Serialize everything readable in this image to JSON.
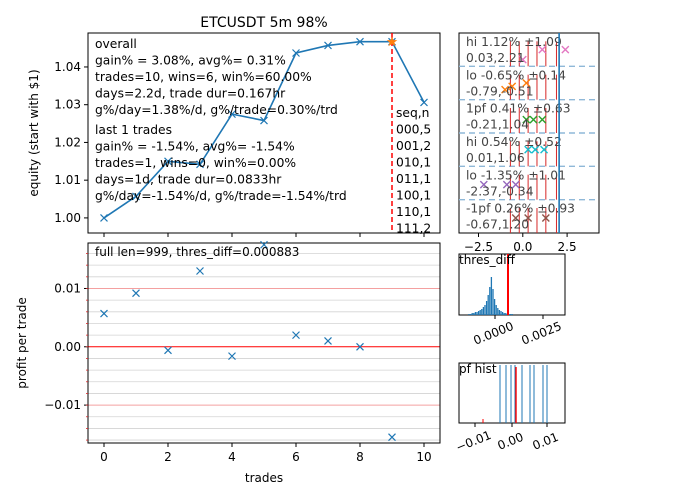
{
  "colors": {
    "series": "#1f77b4",
    "marker_line": "#ff0000",
    "zero_line": "#ff0000",
    "grid_minor": "#d3d3d3",
    "sub_pink": "#e377c2",
    "sub_orange": "#ff7f0e",
    "sub_green": "#2ca02c",
    "sub_olive": "#bcbd22",
    "sub_cyan": "#17becf",
    "sub_purple": "#9467bd",
    "sub_brown": "#8c564b",
    "sub_red": "#d62728"
  },
  "chart_data": [
    {
      "type": "line",
      "title": "ETCUSDT 5m 98%",
      "xlabel": "",
      "ylabel": "equity (start with $1)",
      "x": [
        0,
        1,
        2,
        3,
        4,
        5,
        6,
        7,
        8,
        9,
        10
      ],
      "y": [
        1.0,
        1.0057,
        1.015,
        1.0142,
        1.0275,
        1.0258,
        1.0437,
        1.0457,
        1.0467,
        1.0467,
        1.0306
      ],
      "xlim": [
        -0.5,
        10.5
      ],
      "ylim": [
        0.996,
        1.049
      ],
      "yticks": [
        "1.00",
        "1.01",
        "1.02",
        "1.03",
        "1.04"
      ],
      "marker_x": 9,
      "annotation_overall": [
        "overall",
        "gain% = 3.08%, avg%= 0.31%",
        "trades=10, wins=6, win%=60.00%",
        "days=2.2d, trade dur=0.167hr",
        "g%/day=1.38%/d, g%/trade=0.30%/trd"
      ],
      "annotation_last": [
        "last 1 trades",
        "gain% = -1.54%, avg%= -1.54%",
        "trades=1, wins=0, win%=0.00%",
        "days=1d, trade dur=0.0833hr",
        "g%/day=-1.54%/d, g%/trade=-1.54%/trd"
      ],
      "seq_table": [
        "seq,n",
        "000,5",
        "001,2",
        "010,1",
        "011,1",
        "100,1",
        "110,1",
        "111,2"
      ]
    },
    {
      "type": "scatter",
      "title": "",
      "xlabel": "trades",
      "ylabel": "profit per trade",
      "x": [
        0,
        1,
        2,
        3,
        4,
        5,
        6,
        7,
        8,
        9
      ],
      "y": [
        0.0057,
        0.0092,
        -0.0006,
        0.013,
        -0.0016,
        0.0175,
        0.002,
        0.001,
        0.0,
        -0.0155
      ],
      "xlim": [
        -0.5,
        10.5
      ],
      "ylim": [
        -0.0165,
        0.0178
      ],
      "xticks": [
        "0",
        "2",
        "4",
        "6",
        "8",
        "10"
      ],
      "yticks": [
        "-0.01",
        "0.00",
        "0.01"
      ],
      "annotation": "full len=999, thres_diff=0.000883"
    },
    {
      "type": "scatter",
      "title": "",
      "xticks": [
        "-2.5",
        "0.0",
        "2.5"
      ],
      "rows": [
        {
          "line1": "hi 1.12% ±1.09",
          "line2": "0.03,2.21"
        },
        {
          "line1": "lo -0.65% ±0.14",
          "line2": "-0.79,-0.51"
        },
        {
          "line1": "1pf 0.41% ±0.63",
          "line2": "-0.21,1.04"
        },
        {
          "line1": "hi 0.54% ±0.52",
          "line2": "0.01,1.06"
        },
        {
          "line1": "lo -1.35% ±1.01",
          "line2": "-2.37,-0.34"
        },
        {
          "line1": "-1pf 0.26% ±0.93",
          "line2": "-0.67,1.20"
        }
      ]
    },
    {
      "type": "bar",
      "title": "thres_diff",
      "xticks": [
        "0.0000",
        "0.0025"
      ]
    },
    {
      "type": "bar",
      "title": "pf hist",
      "xticks": [
        "-0.01",
        "0.00",
        "0.01"
      ]
    }
  ]
}
